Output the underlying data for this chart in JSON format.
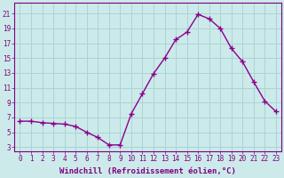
{
  "x": [
    0,
    1,
    2,
    3,
    4,
    5,
    6,
    7,
    8,
    9,
    10,
    11,
    12,
    13,
    14,
    15,
    16,
    17,
    18,
    19,
    20,
    21,
    22,
    23
  ],
  "y": [
    6.5,
    6.5,
    6.3,
    6.2,
    6.1,
    5.8,
    5.0,
    4.3,
    3.3,
    3.3,
    7.5,
    10.2,
    12.9,
    15.0,
    17.5,
    18.5,
    20.9,
    20.3,
    19.0,
    16.3,
    14.5,
    11.8,
    9.2,
    7.8
  ],
  "line_color": "#8B008B",
  "marker": "+",
  "marker_size": 4,
  "bg_color": "#cceaea",
  "grid_color": "#aad4d4",
  "xlabel": "Windchill (Refroidissement éolien,°C)",
  "ylabel_ticks": [
    3,
    5,
    7,
    9,
    11,
    13,
    15,
    17,
    19,
    21
  ],
  "xtick_labels": [
    "0",
    "1",
    "2",
    "3",
    "4",
    "5",
    "6",
    "7",
    "8",
    "9",
    "10",
    "11",
    "12",
    "13",
    "14",
    "15",
    "16",
    "17",
    "18",
    "19",
    "20",
    "21",
    "22",
    "23"
  ],
  "ylim": [
    2.5,
    22.5
  ],
  "xlim": [
    -0.5,
    23.5
  ],
  "tick_color": "#800080",
  "axis_color": "#800080",
  "label_fontsize": 6.5,
  "tick_fontsize": 5.5,
  "line_width": 1.0,
  "figwidth": 3.2,
  "figheight": 2.0,
  "dpi": 100
}
